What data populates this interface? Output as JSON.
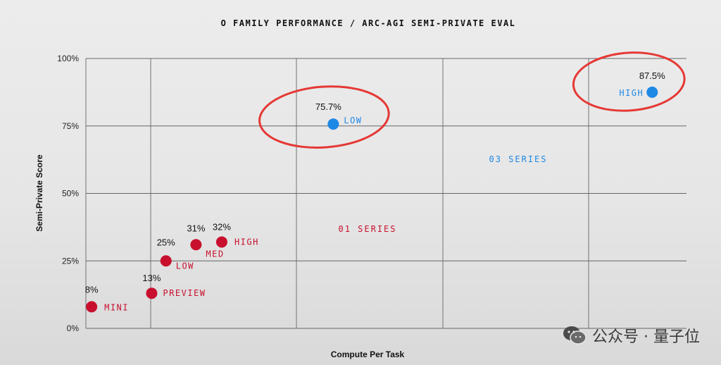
{
  "chart_data": {
    "type": "scatter",
    "title": "O FAMILY PERFORMANCE / ARC-AGI SEMI-PRIVATE EVAL",
    "xlabel": "Compute Per Task",
    "ylabel": "Semi-Private Score",
    "ylim": [
      0,
      100
    ],
    "yticks": [
      {
        "value": 0,
        "label": "0%"
      },
      {
        "value": 25,
        "label": "25%"
      },
      {
        "value": 50,
        "label": "50%"
      },
      {
        "value": 75,
        "label": "75%"
      },
      {
        "value": 100,
        "label": "100%"
      }
    ],
    "grid": true,
    "colors": {
      "o1": "#c8102e",
      "o3": "#1e88e5",
      "highlight": "#e53935"
    },
    "series": [
      {
        "name": "01 SERIES",
        "color": "#c8102e",
        "points": [
          {
            "x": 0.04,
            "y": 8,
            "value_label": "8%",
            "label": "MINI"
          },
          {
            "x": 0.46,
            "y": 13,
            "value_label": "13%",
            "label": "PREVIEW"
          },
          {
            "x": 0.56,
            "y": 25,
            "value_label": "25%",
            "label": "LOW"
          },
          {
            "x": 0.77,
            "y": 31,
            "value_label": "31%",
            "label": "MED"
          },
          {
            "x": 0.95,
            "y": 32,
            "value_label": "32%",
            "label": "HIGH"
          }
        ]
      },
      {
        "name": "03 SERIES",
        "color": "#1e88e5",
        "points": [
          {
            "x": 1.73,
            "y": 75.7,
            "value_label": "75.7%",
            "label": "LOW"
          },
          {
            "x": 3.96,
            "y": 87.5,
            "value_label": "87.5%",
            "label": "HIGH"
          }
        ]
      }
    ],
    "xlim": [
      0,
      4.2
    ],
    "highlighted_points": [
      "03 SERIES LOW",
      "03 SERIES HIGH"
    ]
  },
  "watermark": {
    "text": "公众号 · 量子位",
    "icon": "wechat-icon"
  }
}
